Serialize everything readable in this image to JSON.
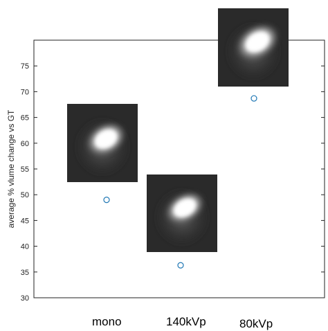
{
  "chart_data": {
    "type": "scatter",
    "title": "",
    "xlabel": "",
    "ylabel": "average % vlume change vs GT",
    "categories": [
      "mono",
      "140kVp",
      "80kVp"
    ],
    "values": [
      49.0,
      36.3,
      68.7
    ],
    "ylim": [
      30,
      80
    ],
    "yticks": [
      30,
      35,
      40,
      45,
      50,
      55,
      60,
      65,
      70,
      75
    ],
    "grid": false,
    "marker": "open-circle",
    "marker_color": "#1f77b4",
    "thumbnails": [
      {
        "category": "mono",
        "label": "lesion-thumbnail-mono"
      },
      {
        "category": "140kVp",
        "label": "lesion-thumbnail-140kvp"
      },
      {
        "category": "80kVp",
        "label": "lesion-thumbnail-80kvp"
      }
    ]
  }
}
